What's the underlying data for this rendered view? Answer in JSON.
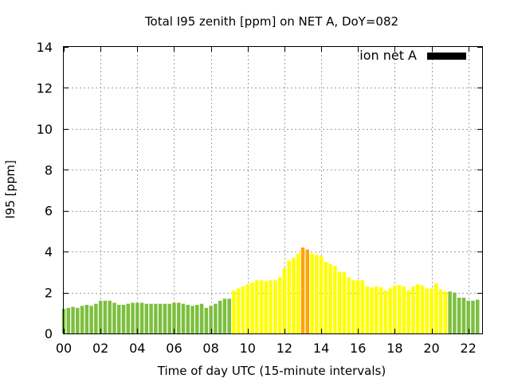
{
  "chart_data": {
    "type": "bar",
    "title": "Total I95 zenith [ppm] on NET A, DoY=082",
    "xlabel": "Time of day UTC (15-minute intervals)",
    "ylabel": "I95 [ppm]",
    "xlim": [
      0,
      22.75
    ],
    "ylim": [
      0,
      14
    ],
    "x_ticks": [
      "00",
      "02",
      "04",
      "06",
      "08",
      "10",
      "12",
      "14",
      "16",
      "18",
      "20",
      "22"
    ],
    "y_ticks": [
      "0",
      "2",
      "4",
      "6",
      "8",
      "10",
      "12",
      "14"
    ],
    "grid": true,
    "interval_hours": 0.25,
    "legend": {
      "label": "ion net A",
      "color": "#000000",
      "position": "top-right"
    },
    "colors": {
      "low": "#7cbf3f",
      "moderate": "#ffff00",
      "elevated": "#ffa500"
    },
    "series": [
      {
        "values": [
          1.2,
          1.25,
          1.3,
          1.25,
          1.35,
          1.4,
          1.35,
          1.45,
          1.6,
          1.6,
          1.6,
          1.5,
          1.4,
          1.4,
          1.45,
          1.5,
          1.5,
          1.5,
          1.45,
          1.45,
          1.45,
          1.45,
          1.45,
          1.45,
          1.5,
          1.5,
          1.45,
          1.4,
          1.35,
          1.4,
          1.45,
          1.25,
          1.35,
          1.45,
          1.6,
          1.7,
          1.7,
          2.1,
          2.2,
          2.3,
          2.4,
          2.5,
          2.6,
          2.6,
          2.55,
          2.6,
          2.6,
          2.75,
          3.2,
          3.55,
          3.7,
          3.9,
          4.2,
          4.1,
          3.9,
          3.85,
          3.8,
          3.5,
          3.4,
          3.3,
          3.0,
          3.0,
          2.75,
          2.6,
          2.6,
          2.6,
          2.3,
          2.25,
          2.3,
          2.25,
          2.1,
          2.2,
          2.35,
          2.35,
          2.3,
          2.1,
          2.3,
          2.4,
          2.35,
          2.2,
          2.2,
          2.45,
          2.15,
          2.05,
          2.05,
          2.0,
          1.75,
          1.75,
          1.6,
          1.6,
          1.65
        ],
        "levels": [
          "low",
          "low",
          "low",
          "low",
          "low",
          "low",
          "low",
          "low",
          "low",
          "low",
          "low",
          "low",
          "low",
          "low",
          "low",
          "low",
          "low",
          "low",
          "low",
          "low",
          "low",
          "low",
          "low",
          "low",
          "low",
          "low",
          "low",
          "low",
          "low",
          "low",
          "low",
          "low",
          "low",
          "low",
          "low",
          "low",
          "low",
          "moderate",
          "moderate",
          "moderate",
          "moderate",
          "moderate",
          "moderate",
          "moderate",
          "moderate",
          "moderate",
          "moderate",
          "moderate",
          "moderate",
          "moderate",
          "moderate",
          "moderate",
          "elevated",
          "elevated",
          "moderate",
          "moderate",
          "moderate",
          "moderate",
          "moderate",
          "moderate",
          "moderate",
          "moderate",
          "moderate",
          "moderate",
          "moderate",
          "moderate",
          "moderate",
          "moderate",
          "moderate",
          "moderate",
          "moderate",
          "moderate",
          "moderate",
          "moderate",
          "moderate",
          "moderate",
          "moderate",
          "moderate",
          "moderate",
          "moderate",
          "moderate",
          "moderate",
          "moderate",
          "moderate",
          "low",
          "low",
          "low",
          "low",
          "low",
          "low",
          "low"
        ]
      }
    ]
  }
}
